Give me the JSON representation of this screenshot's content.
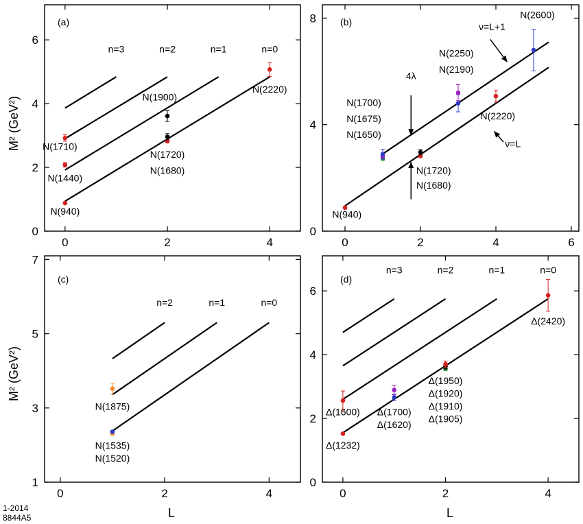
{
  "figure_id": [
    "1-2014",
    "8844A5"
  ],
  "chart_data": [
    {
      "id": "a",
      "type": "scatter",
      "panel_label": "(a)",
      "xlim": [
        -0.4,
        4.6
      ],
      "ylim": [
        0,
        7.1
      ],
      "xticks": [
        0,
        2,
        4
      ],
      "yticks": [
        0,
        2,
        4,
        6
      ],
      "ylabel": "M² (GeV²)",
      "xlabel": "",
      "lines": [
        {
          "name": "n=0",
          "x": [
            0,
            4
          ],
          "y": [
            0.94,
            4.84
          ]
        },
        {
          "name": "n=1",
          "x": [
            0,
            3
          ],
          "y": [
            1.92,
            4.84
          ]
        },
        {
          "name": "n=2",
          "x": [
            0,
            2
          ],
          "y": [
            2.9,
            4.84
          ]
        },
        {
          "name": "n=3",
          "x": [
            0,
            1
          ],
          "y": [
            3.86,
            4.84
          ]
        }
      ],
      "line_labels": [
        {
          "text": "n=3",
          "x": 1.0,
          "y": 5.6
        },
        {
          "text": "n=2",
          "x": 2.0,
          "y": 5.6
        },
        {
          "text": "n=1",
          "x": 3.0,
          "y": 5.6
        },
        {
          "text": "n=0",
          "x": 4.0,
          "y": 5.6
        }
      ],
      "points": [
        {
          "x": 0,
          "y": 0.88,
          "err": 0.02,
          "color": "#d62020"
        },
        {
          "x": 0,
          "y": 2.08,
          "err": 0.07,
          "color": "#d62020"
        },
        {
          "x": 0,
          "y": 2.92,
          "err": 0.1,
          "color": "#d62020"
        },
        {
          "x": 2,
          "y": 2.82,
          "err": 0.05,
          "color": "#d62020"
        },
        {
          "x": 2,
          "y": 2.96,
          "err": 0.1,
          "color": "#000000"
        },
        {
          "x": 2,
          "y": 3.61,
          "err": 0.17,
          "color": "#000000"
        },
        {
          "x": 4,
          "y": 5.07,
          "err": 0.22,
          "color": "#d62020"
        }
      ],
      "annotations": [
        {
          "text": "N(940)",
          "x": 0.0,
          "y": 0.52
        },
        {
          "text": "N(1440)",
          "x": 0.0,
          "y": 1.56
        },
        {
          "text": "N(1710)",
          "x": -0.1,
          "y": 2.55
        },
        {
          "text": "N(1720)",
          "x": 2.0,
          "y": 2.3
        },
        {
          "text": "N(1680)",
          "x": 2.0,
          "y": 1.8
        },
        {
          "text": "N(1900)",
          "x": 1.85,
          "y": 4.1
        },
        {
          "text": "N(2220)",
          "x": 4.0,
          "y": 4.35
        }
      ]
    },
    {
      "id": "b",
      "type": "scatter",
      "panel_label": "(b)",
      "xlim": [
        -0.6,
        6.2
      ],
      "ylim": [
        0,
        8.5
      ],
      "xticks": [
        0,
        2,
        4,
        6
      ],
      "yticks": [
        0,
        4,
        8
      ],
      "ylabel": "",
      "xlabel": "",
      "lines": [
        {
          "name": "ν=L",
          "x": [
            0,
            5.4
          ],
          "y": [
            0.95,
            6.15
          ]
        },
        {
          "name": "ν=L+1",
          "x": [
            1,
            5.4
          ],
          "y": [
            2.9,
            7.1
          ]
        }
      ],
      "points": [
        {
          "x": 0,
          "y": 0.88,
          "err": 0.02,
          "color": "#d62020"
        },
        {
          "x": 1,
          "y": 2.72,
          "err": 0.06,
          "color": "#2a9a3a"
        },
        {
          "x": 1,
          "y": 2.8,
          "err": 0.08,
          "color": "#a020c0"
        },
        {
          "x": 1,
          "y": 2.89,
          "err": 0.18,
          "color": "#2a3ac8"
        },
        {
          "x": 2,
          "y": 2.82,
          "err": 0.05,
          "color": "#d62020"
        },
        {
          "x": 2,
          "y": 2.96,
          "err": 0.1,
          "color": "#000000"
        },
        {
          "x": 3,
          "y": 4.8,
          "err": 0.32,
          "color": "#2a3ac8"
        },
        {
          "x": 3,
          "y": 5.2,
          "err": 0.3,
          "color": "#a020c0"
        },
        {
          "x": 4,
          "y": 5.07,
          "err": 0.22,
          "color": "#d62020"
        },
        {
          "x": 5,
          "y": 6.8,
          "err": 0.78,
          "color": "#2a3ac8"
        }
      ],
      "annotations": [
        {
          "text": "N(940)",
          "x": 0.05,
          "y": 0.5
        },
        {
          "text": "N(1700)",
          "x": 0.5,
          "y": 4.7
        },
        {
          "text": "N(1675)",
          "x": 0.5,
          "y": 4.1
        },
        {
          "text": "N(1650)",
          "x": 0.5,
          "y": 3.5
        },
        {
          "text": "N(1720)",
          "x": 2.35,
          "y": 2.15
        },
        {
          "text": "N(1680)",
          "x": 2.35,
          "y": 1.6
        },
        {
          "text": "N(2250)",
          "x": 2.95,
          "y": 6.55
        },
        {
          "text": "N(2190)",
          "x": 2.95,
          "y": 5.95
        },
        {
          "text": "N(2220)",
          "x": 4.05,
          "y": 4.2
        },
        {
          "text": "N(2600)",
          "x": 5.1,
          "y": 8.0
        },
        {
          "text": "4λ",
          "x": 1.75,
          "y": 5.7
        },
        {
          "text": "ν=L+1",
          "x": 3.9,
          "y": 7.55
        },
        {
          "text": "ν=L",
          "x": 4.45,
          "y": 3.15
        }
      ]
    },
    {
      "id": "c",
      "type": "scatter",
      "panel_label": "(c)",
      "xlim": [
        -0.3,
        4.6
      ],
      "ylim": [
        1,
        7.1
      ],
      "xticks": [
        0,
        2,
        4
      ],
      "yticks": [
        1,
        3,
        5,
        7
      ],
      "ylabel": "M² (GeV²)",
      "xlabel": "",
      "lines": [
        {
          "name": "n=0",
          "x": [
            1,
            4
          ],
          "y": [
            2.38,
            5.3
          ]
        },
        {
          "name": "n=1",
          "x": [
            1,
            3
          ],
          "y": [
            3.36,
            5.3
          ]
        },
        {
          "name": "n=2",
          "x": [
            1,
            2
          ],
          "y": [
            4.33,
            5.3
          ]
        }
      ],
      "line_labels": [
        {
          "text": "n=2",
          "x": 2.0,
          "y": 5.75
        },
        {
          "text": "n=1",
          "x": 3.0,
          "y": 5.75
        },
        {
          "text": "n=0",
          "x": 4.0,
          "y": 5.75
        }
      ],
      "points": [
        {
          "x": 1,
          "y": 2.31,
          "err": 0.03,
          "color": "#f08c30"
        },
        {
          "x": 1,
          "y": 2.36,
          "err": 0.03,
          "color": "#2a3ac8"
        },
        {
          "x": 1,
          "y": 3.52,
          "err": 0.15,
          "color": "#f08c30"
        }
      ],
      "annotations": [
        {
          "text": "N(1875)",
          "x": 1.0,
          "y": 2.95
        },
        {
          "text": "N(1535)",
          "x": 1.0,
          "y": 1.9
        },
        {
          "text": "N(1520)",
          "x": 1.0,
          "y": 1.55
        }
      ]
    },
    {
      "id": "d",
      "type": "scatter",
      "panel_label": "(d)",
      "xlim": [
        -0.4,
        4.6
      ],
      "ylim": [
        0,
        7.1
      ],
      "xticks": [
        0,
        2,
        4
      ],
      "yticks": [
        0,
        2,
        4,
        6
      ],
      "ylabel": "",
      "xlabel": "L",
      "lines": [
        {
          "name": "n=0",
          "x": [
            0,
            4
          ],
          "y": [
            1.55,
            5.75
          ]
        },
        {
          "name": "n=1",
          "x": [
            0,
            3
          ],
          "y": [
            2.6,
            5.75
          ]
        },
        {
          "name": "n=2",
          "x": [
            0,
            2
          ],
          "y": [
            3.65,
            5.75
          ]
        },
        {
          "name": "n=3",
          "x": [
            0,
            1
          ],
          "y": [
            4.7,
            5.75
          ]
        }
      ],
      "line_labels": [
        {
          "text": "n=3",
          "x": 1.0,
          "y": 6.55
        },
        {
          "text": "n=2",
          "x": 2.0,
          "y": 6.55
        },
        {
          "text": "n=1",
          "x": 3.0,
          "y": 6.55
        },
        {
          "text": "n=0",
          "x": 4.0,
          "y": 6.55
        }
      ],
      "points": [
        {
          "x": 0,
          "y": 1.52,
          "err": 0.02,
          "color": "#d62020"
        },
        {
          "x": 0,
          "y": 2.56,
          "err": 0.3,
          "color": "#d62020"
        },
        {
          "x": 1,
          "y": 2.66,
          "err": 0.1,
          "color": "#2a3ac8"
        },
        {
          "x": 1,
          "y": 2.89,
          "err": 0.15,
          "color": "#a020c0"
        },
        {
          "x": 2,
          "y": 3.56,
          "err": 0.06,
          "color": "#2a9a3a"
        },
        {
          "x": 2,
          "y": 3.63,
          "err": 0.08,
          "color": "#000000"
        },
        {
          "x": 2,
          "y": 3.7,
          "err": 0.1,
          "color": "#d62020"
        },
        {
          "x": 4,
          "y": 5.86,
          "err": 0.5,
          "color": "#d62020"
        }
      ],
      "annotations": [
        {
          "text": "Δ(1232)",
          "x": 0.0,
          "y": 1.05
        },
        {
          "text": "Δ(1600)",
          "x": 0.0,
          "y": 2.1
        },
        {
          "text": "Δ(1700)",
          "x": 1.0,
          "y": 2.1
        },
        {
          "text": "Δ(1620)",
          "x": 1.0,
          "y": 1.7
        },
        {
          "text": "Δ(1950)",
          "x": 2.0,
          "y": 3.08
        },
        {
          "text": "Δ(1920)",
          "x": 2.0,
          "y": 2.68
        },
        {
          "text": "Δ(1910)",
          "x": 2.0,
          "y": 2.28
        },
        {
          "text": "Δ(1905)",
          "x": 2.0,
          "y": 1.88
        },
        {
          "text": "Δ(2420)",
          "x": 4.0,
          "y": 4.95
        }
      ]
    }
  ]
}
